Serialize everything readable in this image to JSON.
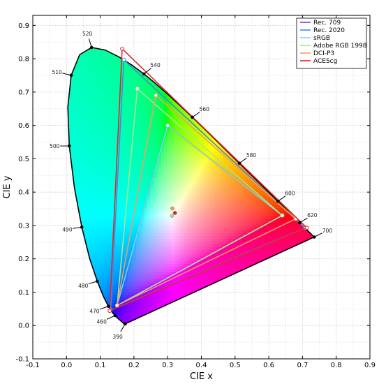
{
  "chart_data": {
    "type": "chromaticity-diagram",
    "xlabel": "CIE x",
    "ylabel": "CIE y",
    "xlim": [
      -0.1,
      0.9
    ],
    "ylim": [
      -0.1,
      0.93
    ],
    "x_ticks": [
      "-0.1",
      "0.0",
      "0.1",
      "0.2",
      "0.3",
      "0.4",
      "0.5",
      "0.6",
      "0.7",
      "0.8",
      "0.9"
    ],
    "y_ticks": [
      "-0.1",
      "0.0",
      "0.1",
      "0.2",
      "0.3",
      "0.4",
      "0.5",
      "0.6",
      "0.7",
      "0.8",
      "0.9"
    ],
    "x_tick_values": [
      -0.1,
      0.0,
      0.1,
      0.2,
      0.3,
      0.4,
      0.5,
      0.6,
      0.7,
      0.8,
      0.9
    ],
    "y_tick_values": [
      -0.1,
      0.0,
      0.1,
      0.2,
      0.3,
      0.4,
      0.5,
      0.6,
      0.7,
      0.8,
      0.9
    ],
    "grid": true,
    "legend_position": "top-right",
    "spectral_locus": [
      [
        0.1741,
        0.005
      ],
      [
        0.1738,
        0.0049
      ],
      [
        0.1736,
        0.0049
      ],
      [
        0.1733,
        0.0048
      ],
      [
        0.173,
        0.0048
      ],
      [
        0.1726,
        0.0048
      ],
      [
        0.1721,
        0.0048
      ],
      [
        0.1714,
        0.0051
      ],
      [
        0.1703,
        0.0058
      ],
      [
        0.1689,
        0.0069
      ],
      [
        0.1669,
        0.0086
      ],
      [
        0.1644,
        0.0109
      ],
      [
        0.1611,
        0.0138
      ],
      [
        0.1566,
        0.0177
      ],
      [
        0.151,
        0.0227
      ],
      [
        0.144,
        0.0297
      ],
      [
        0.1355,
        0.0399
      ],
      [
        0.1241,
        0.0578
      ],
      [
        0.1096,
        0.0868
      ],
      [
        0.0913,
        0.1327
      ],
      [
        0.0687,
        0.2007
      ],
      [
        0.0454,
        0.295
      ],
      [
        0.0235,
        0.4127
      ],
      [
        0.0082,
        0.5384
      ],
      [
        0.0039,
        0.6548
      ],
      [
        0.0139,
        0.7502
      ],
      [
        0.0389,
        0.812
      ],
      [
        0.0743,
        0.8338
      ],
      [
        0.1142,
        0.8262
      ],
      [
        0.1547,
        0.8059
      ],
      [
        0.1929,
        0.7816
      ],
      [
        0.2296,
        0.7543
      ],
      [
        0.2658,
        0.7243
      ],
      [
        0.3016,
        0.6923
      ],
      [
        0.3373,
        0.6589
      ],
      [
        0.3731,
        0.6245
      ],
      [
        0.4087,
        0.5896
      ],
      [
        0.4441,
        0.5547
      ],
      [
        0.4788,
        0.5202
      ],
      [
        0.5125,
        0.4866
      ],
      [
        0.5448,
        0.4544
      ],
      [
        0.5752,
        0.4242
      ],
      [
        0.6029,
        0.3965
      ],
      [
        0.627,
        0.3725
      ],
      [
        0.6482,
        0.3514
      ],
      [
        0.6658,
        0.334
      ],
      [
        0.6801,
        0.3197
      ],
      [
        0.6915,
        0.3083
      ],
      [
        0.7006,
        0.2993
      ],
      [
        0.7079,
        0.292
      ],
      [
        0.714,
        0.2859
      ],
      [
        0.719,
        0.2809
      ],
      [
        0.723,
        0.277
      ],
      [
        0.726,
        0.274
      ],
      [
        0.7283,
        0.2717
      ],
      [
        0.73,
        0.27
      ],
      [
        0.7311,
        0.2689
      ],
      [
        0.732,
        0.268
      ],
      [
        0.7327,
        0.2673
      ],
      [
        0.7334,
        0.2666
      ],
      [
        0.734,
        0.266
      ],
      [
        0.7344,
        0.2656
      ],
      [
        0.7346,
        0.2654
      ],
      [
        0.7347,
        0.2653
      ]
    ],
    "wavelength_labels": [
      {
        "label": "390",
        "point": [
          0.1741,
          0.005
        ],
        "dir": [
          -0.6,
          -1.0
        ]
      },
      {
        "label": "460",
        "point": [
          0.144,
          0.0297
        ],
        "dir": [
          -1.0,
          -0.45
        ]
      },
      {
        "label": "470",
        "point": [
          0.1241,
          0.0578
        ],
        "dir": [
          -1.0,
          -0.35
        ]
      },
      {
        "label": "480",
        "point": [
          0.0913,
          0.1327
        ],
        "dir": [
          -1.0,
          -0.3
        ]
      },
      {
        "label": "490",
        "point": [
          0.0454,
          0.295
        ],
        "dir": [
          -1.0,
          -0.15
        ]
      },
      {
        "label": "500",
        "point": [
          0.0082,
          0.5384
        ],
        "dir": [
          -1.0,
          0.0
        ]
      },
      {
        "label": "510",
        "point": [
          0.0139,
          0.7502
        ],
        "dir": [
          -1.0,
          0.25
        ]
      },
      {
        "label": "520",
        "point": [
          0.0743,
          0.8338
        ],
        "dir": [
          -0.3,
          1.0
        ]
      },
      {
        "label": "540",
        "point": [
          0.2296,
          0.7543
        ],
        "dir": [
          1.0,
          0.8
        ]
      },
      {
        "label": "560",
        "point": [
          0.3731,
          0.6245
        ],
        "dir": [
          1.0,
          0.7
        ]
      },
      {
        "label": "580",
        "point": [
          0.5125,
          0.4866
        ],
        "dir": [
          1.0,
          0.7
        ]
      },
      {
        "label": "600",
        "point": [
          0.627,
          0.3725
        ],
        "dir": [
          1.0,
          0.7
        ]
      },
      {
        "label": "620",
        "point": [
          0.6915,
          0.3083
        ],
        "dir": [
          1.0,
          0.6
        ]
      },
      {
        "label": "700",
        "point": [
          0.7347,
          0.2653
        ],
        "dir": [
          1.0,
          0.5
        ]
      }
    ],
    "series": [
      {
        "name": "Rec. 709",
        "color": "#7b3fd8",
        "primaries": [
          [
            0.64,
            0.33
          ],
          [
            0.3,
            0.6
          ],
          [
            0.15,
            0.06
          ]
        ],
        "white": [
          0.3127,
          0.329
        ]
      },
      {
        "name": "Rec. 2020",
        "color": "#4a86d8",
        "primaries": [
          [
            0.708,
            0.292
          ],
          [
            0.17,
            0.797
          ],
          [
            0.131,
            0.046
          ]
        ],
        "white": [
          0.3127,
          0.329
        ]
      },
      {
        "name": "sRGB",
        "color": "#7fd6ea",
        "primaries": [
          [
            0.64,
            0.33
          ],
          [
            0.3,
            0.6
          ],
          [
            0.15,
            0.06
          ]
        ],
        "white": [
          0.3127,
          0.329
        ]
      },
      {
        "name": "Adobe RGB 1998",
        "color": "#a9e58c",
        "primaries": [
          [
            0.64,
            0.33
          ],
          [
            0.21,
            0.71
          ],
          [
            0.15,
            0.06
          ]
        ],
        "white": [
          0.3127,
          0.329
        ]
      },
      {
        "name": "DCI-P3",
        "color": "#f2a05b",
        "primaries": [
          [
            0.68,
            0.32
          ],
          [
            0.265,
            0.69
          ],
          [
            0.15,
            0.06
          ]
        ],
        "white": [
          0.314,
          0.351
        ]
      },
      {
        "name": "ACEScg",
        "color": "#e3232b",
        "primaries": [
          [
            0.713,
            0.293
          ],
          [
            0.165,
            0.83
          ],
          [
            0.128,
            0.044
          ]
        ],
        "white": [
          0.32168,
          0.33767
        ]
      }
    ]
  }
}
